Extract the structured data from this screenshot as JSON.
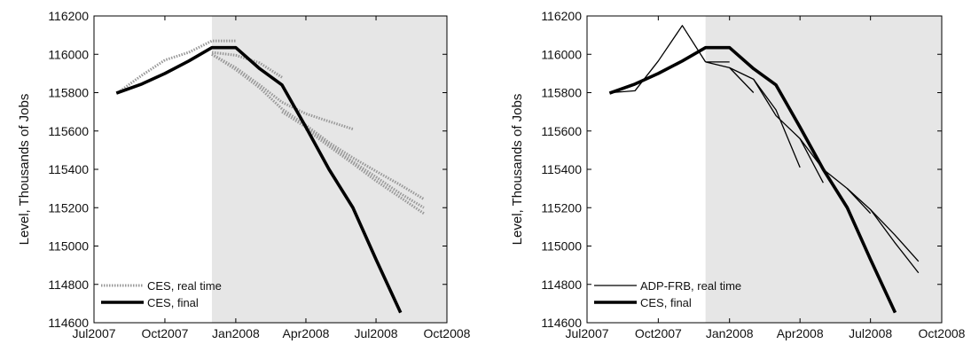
{
  "chart_data": [
    {
      "type": "line",
      "panel": "left",
      "xlabel": "",
      "ylabel": "Level, Thousands of Jobs",
      "xlim": [
        "2007-07-01",
        "2008-10-01"
      ],
      "ylim": [
        114600,
        116200
      ],
      "xticks": [
        {
          "date": "2007-07-01",
          "label": "Jul2007"
        },
        {
          "date": "2007-10-01",
          "label": "Oct2007"
        },
        {
          "date": "2008-01-01",
          "label": "Jan2008"
        },
        {
          "date": "2008-04-01",
          "label": "Apr2008"
        },
        {
          "date": "2008-07-01",
          "label": "Jul2008"
        },
        {
          "date": "2008-10-01",
          "label": "Oct2008"
        }
      ],
      "yticks": [
        114600,
        114800,
        115000,
        115200,
        115400,
        115600,
        115800,
        116000,
        116200
      ],
      "recession_shading": [
        "2007-12-01",
        "2008-10-01"
      ],
      "recession_color": "#e6e6e6",
      "grid": false,
      "legend_position": "bottom-left",
      "legend": [
        {
          "label": "CES, real time",
          "style": "dotted",
          "color": "#999999"
        },
        {
          "label": "CES, final",
          "style": "solid-thick",
          "color": "#000000"
        }
      ],
      "final_series": {
        "name": "CES, final",
        "x": [
          "2007-08-01",
          "2007-09-01",
          "2007-10-01",
          "2007-11-01",
          "2007-12-01",
          "2008-01-01",
          "2008-02-01",
          "2008-03-01",
          "2008-04-01",
          "2008-05-01",
          "2008-06-01",
          "2008-07-01",
          "2008-08-01",
          "2008-09-01"
        ],
        "y": [
          115800,
          115845,
          115900,
          115965,
          116035,
          116035,
          115925,
          115840,
          115620,
          115400,
          115200,
          114930,
          114660,
          null
        ]
      },
      "vintage_series": [
        {
          "x": [
            "2007-08-01",
            "2007-09-01",
            "2007-10-01",
            "2007-11-01",
            "2007-12-01",
            "2008-01-01"
          ],
          "y": [
            115800,
            115890,
            115970,
            116010,
            116070,
            116070
          ]
        },
        {
          "x": [
            "2007-12-01",
            "2008-01-01",
            "2008-02-01",
            "2008-03-01"
          ],
          "y": [
            116010,
            115995,
            115955,
            115880
          ]
        },
        {
          "x": [
            "2007-12-01",
            "2008-01-01",
            "2008-02-01",
            "2008-03-01",
            "2008-04-01",
            "2008-05-01",
            "2008-06-01"
          ],
          "y": [
            116000,
            115930,
            115840,
            115750,
            115690,
            115650,
            115610
          ]
        },
        {
          "x": [
            "2007-12-01",
            "2008-01-01",
            "2008-02-01",
            "2008-03-01",
            "2008-04-01",
            "2008-05-01",
            "2008-06-01",
            "2008-07-01",
            "2008-08-01",
            "2008-09-01"
          ],
          "y": [
            116000,
            115920,
            115825,
            115715,
            115630,
            115540,
            115460,
            115390,
            115320,
            115245
          ]
        },
        {
          "x": [
            "2008-03-01",
            "2008-04-01",
            "2008-05-01",
            "2008-06-01",
            "2008-07-01",
            "2008-08-01",
            "2008-09-01"
          ],
          "y": [
            115700,
            115620,
            115530,
            115440,
            115360,
            115275,
            115200
          ]
        },
        {
          "x": [
            "2008-04-01",
            "2008-05-01",
            "2008-06-01",
            "2008-07-01",
            "2008-08-01",
            "2008-09-01"
          ],
          "y": [
            115610,
            115520,
            115430,
            115340,
            115255,
            115170
          ]
        }
      ]
    },
    {
      "type": "line",
      "panel": "right",
      "xlabel": "",
      "ylabel": "Level, Thousands of Jobs",
      "xlim": [
        "2007-07-01",
        "2008-10-01"
      ],
      "ylim": [
        114600,
        116200
      ],
      "xticks": [
        {
          "date": "2007-07-01",
          "label": "Jul2007"
        },
        {
          "date": "2007-10-01",
          "label": "Oct2007"
        },
        {
          "date": "2008-01-01",
          "label": "Jan2008"
        },
        {
          "date": "2008-04-01",
          "label": "Apr2008"
        },
        {
          "date": "2008-07-01",
          "label": "Jul2008"
        },
        {
          "date": "2008-10-01",
          "label": "Oct2008"
        }
      ],
      "yticks": [
        114600,
        114800,
        115000,
        115200,
        115400,
        115600,
        115800,
        116000,
        116200
      ],
      "recession_shading": [
        "2007-12-01",
        "2008-10-01"
      ],
      "recession_color": "#e6e6e6",
      "grid": false,
      "legend_position": "bottom-left",
      "legend": [
        {
          "label": "ADP-FRB, real time",
          "style": "solid-thin",
          "color": "#000000"
        },
        {
          "label": "CES, final",
          "style": "solid-thick",
          "color": "#000000"
        }
      ],
      "final_series": {
        "name": "CES, final",
        "x": [
          "2007-08-01",
          "2007-09-01",
          "2007-10-01",
          "2007-11-01",
          "2007-12-01",
          "2008-01-01",
          "2008-02-01",
          "2008-03-01",
          "2008-04-01",
          "2008-05-01",
          "2008-06-01",
          "2008-07-01",
          "2008-08-01",
          "2008-09-01"
        ],
        "y": [
          115800,
          115845,
          115900,
          115965,
          116035,
          116035,
          115925,
          115840,
          115620,
          115400,
          115200,
          114930,
          114660,
          null
        ]
      },
      "vintage_series": [
        {
          "x": [
            "2007-08-01",
            "2007-09-01",
            "2007-10-01",
            "2007-11-01",
            "2007-12-01"
          ],
          "y": [
            115800,
            115810,
            115965,
            116150,
            115960
          ]
        },
        {
          "x": [
            "2007-12-01",
            "2008-01-01"
          ],
          "y": [
            115960,
            115960
          ]
        },
        {
          "x": [
            "2007-12-01",
            "2008-01-01",
            "2008-02-01"
          ],
          "y": [
            115960,
            115930,
            115800
          ]
        },
        {
          "x": [
            "2008-01-01",
            "2008-02-01",
            "2008-03-01",
            "2008-04-01"
          ],
          "y": [
            115930,
            115870,
            115710,
            115410
          ]
        },
        {
          "x": [
            "2008-02-01",
            "2008-03-01",
            "2008-04-01",
            "2008-05-01"
          ],
          "y": [
            115870,
            115680,
            115560,
            115330
          ]
        },
        {
          "x": [
            "2008-04-01",
            "2008-05-01",
            "2008-06-01",
            "2008-07-01"
          ],
          "y": [
            115560,
            115400,
            115300,
            115170
          ]
        },
        {
          "x": [
            "2008-06-01",
            "2008-07-01",
            "2008-08-01",
            "2008-09-01"
          ],
          "y": [
            115300,
            115190,
            115060,
            114920
          ]
        },
        {
          "x": [
            "2008-07-01",
            "2008-08-01",
            "2008-09-01"
          ],
          "y": [
            115190,
            115020,
            114860
          ]
        }
      ]
    }
  ]
}
